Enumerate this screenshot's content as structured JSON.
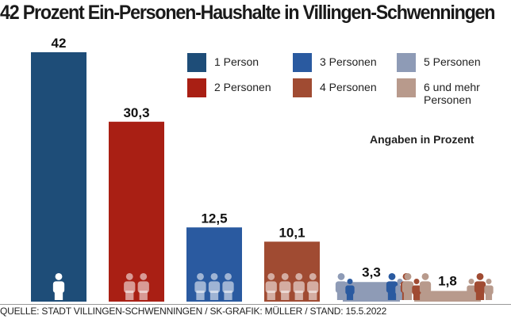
{
  "chart_data": {
    "type": "bar",
    "title": "42 Prozent Ein-Personen-Haushalte in Villingen-Schwenningen",
    "categories": [
      "1 Person",
      "2 Personen",
      "3 Personen",
      "4 Personen",
      "5 Personen",
      "6 und mehr Personen"
    ],
    "values": [
      42,
      30.3,
      12.5,
      10.1,
      3.3,
      1.8
    ],
    "value_labels": [
      "42",
      "30,3",
      "12,5",
      "10,1",
      "3,3",
      "1,8"
    ],
    "colors": [
      "#1e4d78",
      "#a91f14",
      "#2a5aa0",
      "#a04b32",
      "#8e9bb6",
      "#b89a8c"
    ],
    "unit_note": "Angaben in Prozent",
    "ylim": [
      0,
      42
    ],
    "grid": false,
    "legend_position": "top-right",
    "xlabel": "",
    "ylabel": ""
  },
  "source": "QUELLE: STADT VILLINGEN-SCHWENNINGEN / SK-GRAFIK: MÜLLER / STAND: 15.5.2022"
}
